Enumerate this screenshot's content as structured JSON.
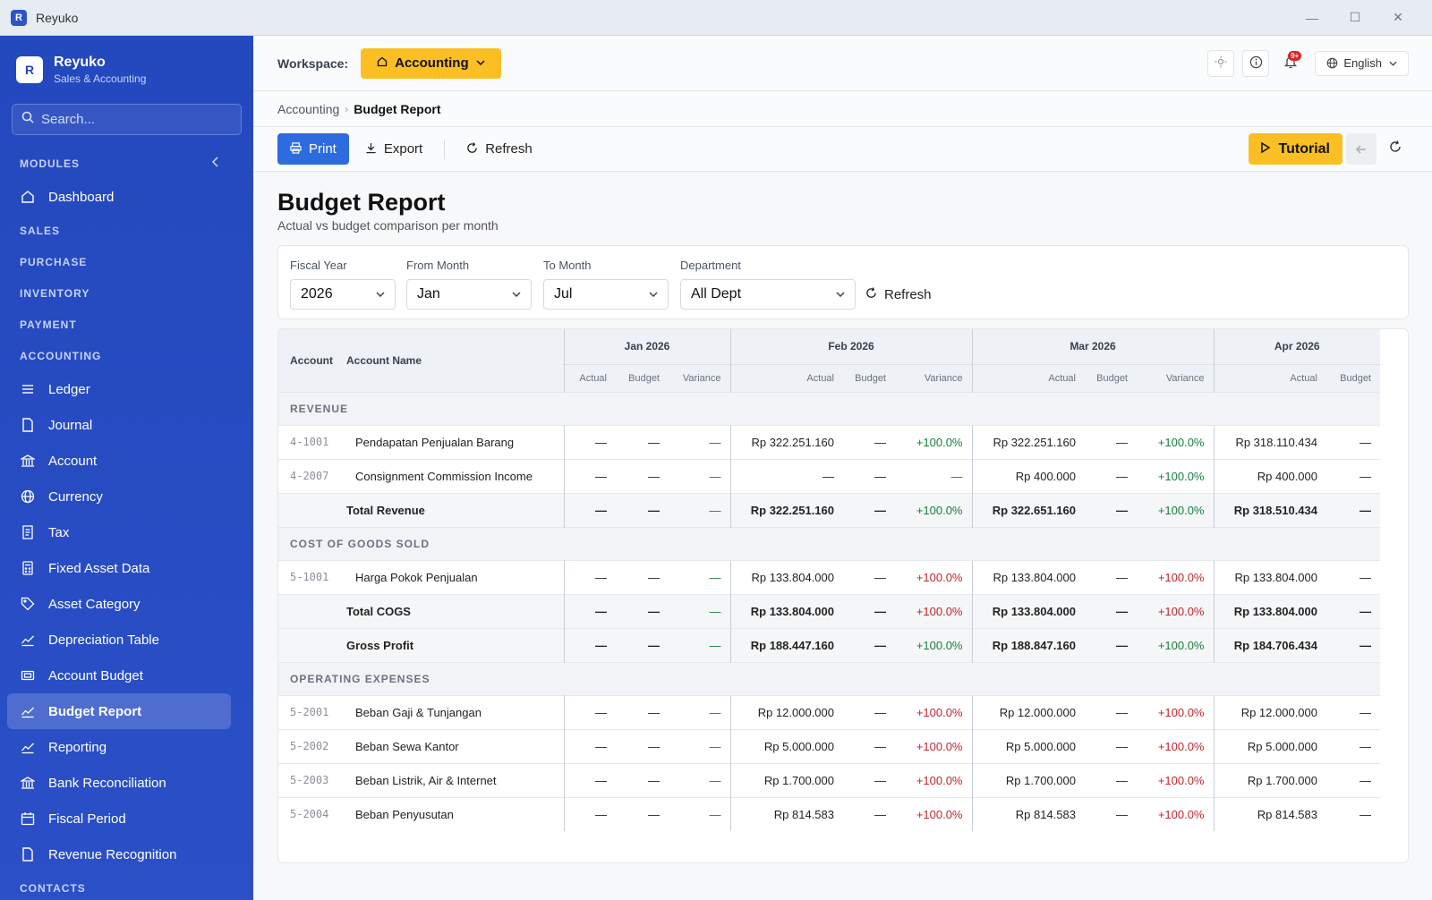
{
  "window": {
    "badge": "R",
    "title": "Reyuko",
    "controls": [
      "—",
      "☐",
      "✕"
    ]
  },
  "sidebar": {
    "brand_logo": "R",
    "brand_name": "Reyuko",
    "brand_sub": "Sales & Accounting",
    "search_placeholder": "Search...",
    "modules_label": "MODULES",
    "dashboard": "Dashboard",
    "sections": {
      "sales": "SALES",
      "purchase": "PURCHASE",
      "inventory": "INVENTORY",
      "payment": "PAYMENT",
      "accounting": "ACCOUNTING",
      "contacts": "CONTACTS"
    },
    "accounting_items": [
      {
        "label": "Ledger",
        "icon": "list-icon"
      },
      {
        "label": "Journal",
        "icon": "document-icon"
      },
      {
        "label": "Account",
        "icon": "bank-icon"
      },
      {
        "label": "Currency",
        "icon": "globe-icon"
      },
      {
        "label": "Tax",
        "icon": "receipt-icon"
      },
      {
        "label": "Fixed Asset Data",
        "icon": "calculator-icon"
      },
      {
        "label": "Asset Category",
        "icon": "tag-icon"
      },
      {
        "label": "Depreciation Table",
        "icon": "chart-icon"
      },
      {
        "label": "Account Budget",
        "icon": "wallet-icon"
      },
      {
        "label": "Budget Report",
        "icon": "chart-icon"
      },
      {
        "label": "Reporting",
        "icon": "chart-icon"
      },
      {
        "label": "Bank Reconciliation",
        "icon": "bank-icon"
      },
      {
        "label": "Fiscal Period",
        "icon": "calendar-icon"
      },
      {
        "label": "Revenue Recognition",
        "icon": "document-icon"
      }
    ]
  },
  "topbar": {
    "workspace_label": "Workspace:",
    "workspace_value": "Accounting",
    "notif_count": "9+",
    "language": "English"
  },
  "breadcrumb": {
    "parent": "Accounting",
    "current": "Budget Report"
  },
  "toolbar": {
    "print": "Print",
    "export": "Export",
    "refresh": "Refresh",
    "tutorial": "Tutorial"
  },
  "page": {
    "title": "Budget Report",
    "subtitle": "Actual vs budget comparison per month"
  },
  "filters": {
    "fiscal_year": {
      "label": "Fiscal Year",
      "value": "2026"
    },
    "from_month": {
      "label": "From Month",
      "value": "Jan"
    },
    "to_month": {
      "label": "To Month",
      "value": "Jul"
    },
    "department": {
      "label": "Department",
      "value": "All Dept"
    },
    "refresh": "Refresh"
  },
  "table": {
    "col_account": "Account",
    "col_account_name": "Account Name",
    "months": [
      "Jan 2026",
      "Feb 2026",
      "Mar 2026",
      "Apr 2026"
    ],
    "sub_cols": [
      "Actual",
      "Budget",
      "Variance"
    ],
    "dash": "—",
    "sections": {
      "revenue": "REVENUE",
      "cogs": "COST OF GOODS SOLD",
      "opex": "OPERATING EXPENSES"
    },
    "rows": {
      "r1": {
        "code": "4-1001",
        "name": "Pendapatan Penjualan Barang",
        "feb_actual": "Rp 322.251.160",
        "feb_var": "+100.0%",
        "mar_actual": "Rp 322.251.160",
        "mar_var": "+100.0%",
        "apr_actual": "Rp 318.110.434"
      },
      "r2": {
        "code": "4-2007",
        "name": "Consignment Commission Income",
        "mar_actual": "Rp 400.000",
        "mar_var": "+100.0%",
        "apr_actual": "Rp 400.000"
      },
      "total_revenue": {
        "name": "Total Revenue",
        "feb_actual": "Rp 322.251.160",
        "feb_var": "+100.0%",
        "mar_actual": "Rp 322.651.160",
        "mar_var": "+100.0%",
        "apr_actual": "Rp 318.510.434"
      },
      "c1": {
        "code": "5-1001",
        "name": "Harga Pokok Penjualan",
        "feb_actual": "Rp 133.804.000",
        "feb_var": "+100.0%",
        "mar_actual": "Rp 133.804.000",
        "mar_var": "+100.0%",
        "apr_actual": "Rp 133.804.000"
      },
      "total_cogs": {
        "name": "Total COGS",
        "feb_actual": "Rp 133.804.000",
        "feb_var": "+100.0%",
        "mar_actual": "Rp 133.804.000",
        "mar_var": "+100.0%",
        "apr_actual": "Rp 133.804.000"
      },
      "gross_profit": {
        "name": "Gross Profit",
        "feb_actual": "Rp 188.447.160",
        "feb_var": "+100.0%",
        "mar_actual": "Rp 188.847.160",
        "mar_var": "+100.0%",
        "apr_actual": "Rp 184.706.434"
      },
      "o1": {
        "code": "5-2001",
        "name": "Beban Gaji & Tunjangan",
        "feb_actual": "Rp 12.000.000",
        "feb_var": "+100.0%",
        "mar_actual": "Rp 12.000.000",
        "mar_var": "+100.0%",
        "apr_actual": "Rp 12.000.000"
      },
      "o2": {
        "code": "5-2002",
        "name": "Beban Sewa Kantor",
        "feb_actual": "Rp 5.000.000",
        "feb_var": "+100.0%",
        "mar_actual": "Rp 5.000.000",
        "mar_var": "+100.0%",
        "apr_actual": "Rp 5.000.000"
      },
      "o3": {
        "code": "5-2003",
        "name": "Beban Listrik, Air & Internet",
        "feb_actual": "Rp 1.700.000",
        "feb_var": "+100.0%",
        "mar_actual": "Rp 1.700.000",
        "mar_var": "+100.0%",
        "apr_actual": "Rp 1.700.000"
      },
      "o4": {
        "code": "5-2004",
        "name": "Beban Penyusutan",
        "feb_actual": "Rp 814.583",
        "feb_var": "+100.0%",
        "mar_actual": "Rp 814.583",
        "mar_var": "+100.0%",
        "apr_actual": "Rp 814.583"
      }
    }
  },
  "colors": {
    "sidebar": "#2448bd",
    "accent_yellow": "#fbbf24",
    "primary_blue": "#2d6cdf",
    "positive": "#15803d",
    "negative": "#c0262d"
  }
}
